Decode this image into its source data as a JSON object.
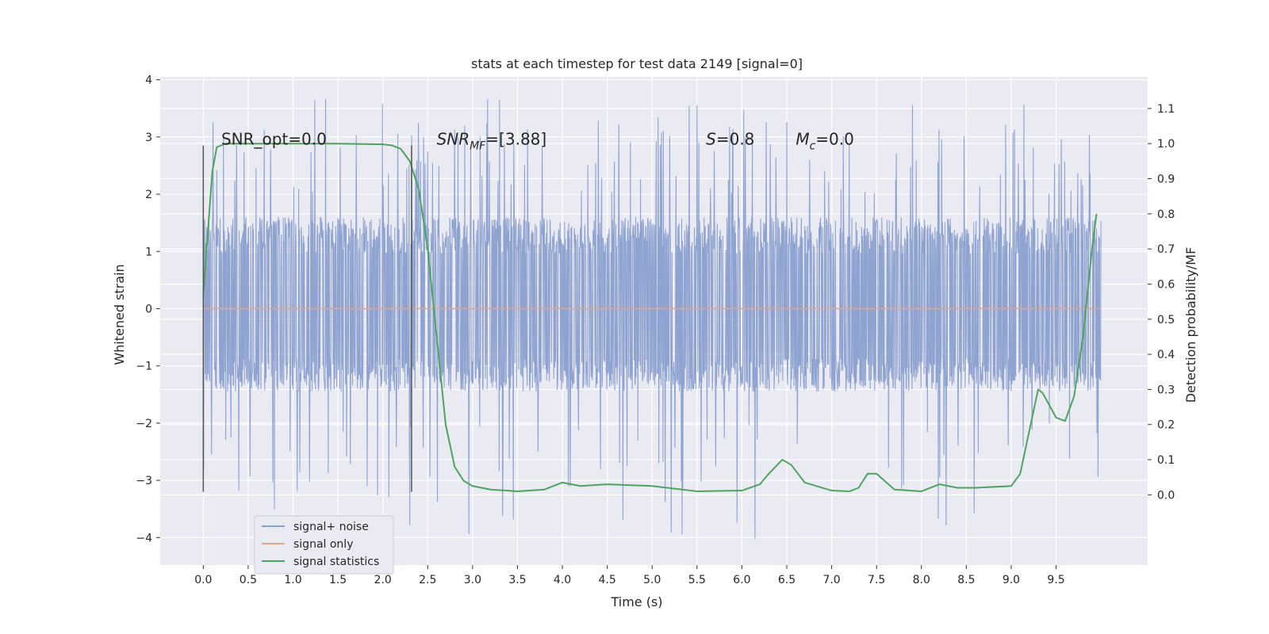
{
  "chart_data": {
    "type": "line",
    "title": "stats at each timestep for test data 2149 [signal=0]",
    "xlabel": "Time (s)",
    "ylabel_left": "Whitened strain",
    "ylabel_right": "Detection probability/MF",
    "xlim": [
      -0.48,
      10.52
    ],
    "ylim_left": [
      -4.48,
      4.05
    ],
    "ylim_right": [
      -0.2,
      1.19
    ],
    "xticks": [
      "0.0",
      "0.5",
      "1.0",
      "1.5",
      "2.0",
      "2.5",
      "3.0",
      "3.5",
      "4.0",
      "4.5",
      "5.0",
      "5.5",
      "6.0",
      "6.5",
      "7.0",
      "7.5",
      "8.0",
      "8.5",
      "9.0",
      "9.5"
    ],
    "yticks_left": [
      "4",
      "3",
      "2",
      "1",
      "0",
      "−1",
      "−2",
      "−3",
      "−4"
    ],
    "yticks_right": [
      "1.1",
      "1.0",
      "0.9",
      "0.8",
      "0.7",
      "0.6",
      "0.5",
      "0.4",
      "0.3",
      "0.2",
      "0.1",
      "0.0"
    ],
    "grid": true,
    "legend_position": "lower-left",
    "series": [
      {
        "name": "signal+ noise",
        "axis": "left",
        "style": "noise",
        "x_range": [
          0.0,
          10.0
        ],
        "color": "#8a9fcf",
        "band_low": -1.45,
        "band_high": 1.6,
        "spike_max": 3.7,
        "spike_min": -4.05
      },
      {
        "name": "signal only",
        "axis": "left",
        "style": "line",
        "color": "#e0a590",
        "x": [
          0.0,
          10.0
        ],
        "y": [
          0.0,
          0.0
        ]
      },
      {
        "name": "signal statistics",
        "axis": "right",
        "style": "line",
        "color": "#4ea35e",
        "x": [
          0.0,
          0.06,
          0.1,
          0.15,
          0.25,
          0.4,
          0.6,
          1.0,
          1.5,
          2.0,
          2.1,
          2.2,
          2.3,
          2.4,
          2.5,
          2.6,
          2.7,
          2.8,
          2.9,
          3.0,
          3.2,
          3.5,
          3.8,
          4.0,
          4.2,
          4.5,
          5.0,
          5.5,
          6.0,
          6.2,
          6.3,
          6.45,
          6.55,
          6.7,
          7.0,
          7.2,
          7.3,
          7.4,
          7.5,
          7.7,
          8.0,
          8.2,
          8.4,
          8.6,
          9.0,
          9.1,
          9.2,
          9.3,
          9.35,
          9.5,
          9.6,
          9.7,
          9.8,
          9.9,
          9.95
        ],
        "y": [
          0.57,
          0.78,
          0.92,
          0.99,
          1.0,
          1.0,
          1.0,
          1.0,
          1.0,
          0.998,
          0.995,
          0.985,
          0.95,
          0.87,
          0.7,
          0.45,
          0.2,
          0.08,
          0.04,
          0.025,
          0.015,
          0.01,
          0.015,
          0.035,
          0.025,
          0.03,
          0.025,
          0.01,
          0.012,
          0.03,
          0.06,
          0.1,
          0.085,
          0.035,
          0.012,
          0.01,
          0.02,
          0.06,
          0.06,
          0.015,
          0.01,
          0.03,
          0.02,
          0.02,
          0.025,
          0.06,
          0.18,
          0.3,
          0.29,
          0.22,
          0.21,
          0.28,
          0.45,
          0.7,
          0.8
        ]
      }
    ],
    "vlines": [
      {
        "x": 0.0,
        "y_range": [
          -3.2,
          2.85
        ]
      },
      {
        "x": 2.32,
        "y_range": [
          -3.2,
          2.85
        ]
      }
    ],
    "annotations": [
      {
        "prefix": "SNR_opt",
        "subscript": "",
        "suffix": "=0.0",
        "italic": false,
        "x": 0.2,
        "y": 2.95
      },
      {
        "prefix": "SNR",
        "subscript": "MF",
        "suffix": "=[3.88]",
        "italic": true,
        "x": 2.6,
        "y": 2.95
      },
      {
        "prefix": "S",
        "subscript": "",
        "suffix": "=0.8",
        "italic": true,
        "x": 5.6,
        "y": 2.95
      },
      {
        "prefix": "M",
        "subscript": "c",
        "suffix": "=0.0",
        "italic": true,
        "x": 6.6,
        "y": 2.95
      }
    ],
    "colors": {
      "plot_background": "#eaeaf2",
      "grid": "#ffffff",
      "vline": "#555555"
    }
  }
}
